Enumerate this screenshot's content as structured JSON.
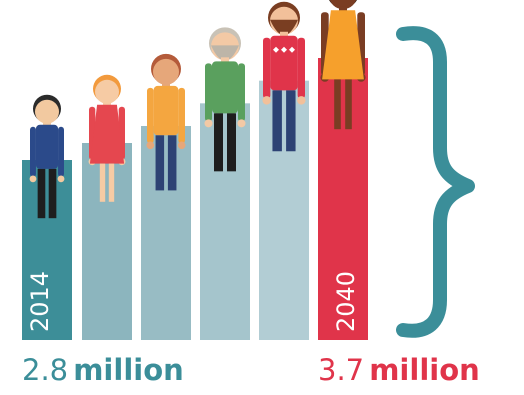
{
  "chart_data": {
    "type": "bar",
    "categories": [
      "2014",
      "",
      "",
      "",
      "",
      "2040"
    ],
    "values": [
      2.8,
      2.95,
      3.1,
      3.3,
      3.5,
      3.7
    ],
    "unit": "million",
    "labels": {
      "start_value": "2.8",
      "start_unit": "million",
      "end_value": "3.7",
      "end_unit": "million"
    },
    "bar_labels": {
      "first": "2014",
      "last": "2040"
    }
  },
  "colors": {
    "teal": "#3b8e99",
    "teal_light": "#8fb7bf",
    "red": "#e0344a",
    "bar_shades": [
      "#3d8e98",
      "#8cb5be",
      "#98bcc4",
      "#a5c5cc",
      "#b2cdd4",
      "#e0344a"
    ]
  },
  "icons": [
    "person-boy-icon",
    "person-girl-icon",
    "person-woman-icon",
    "person-elderly-man-icon",
    "person-bearded-man-icon",
    "person-woman-dress-icon",
    "brace-icon"
  ]
}
